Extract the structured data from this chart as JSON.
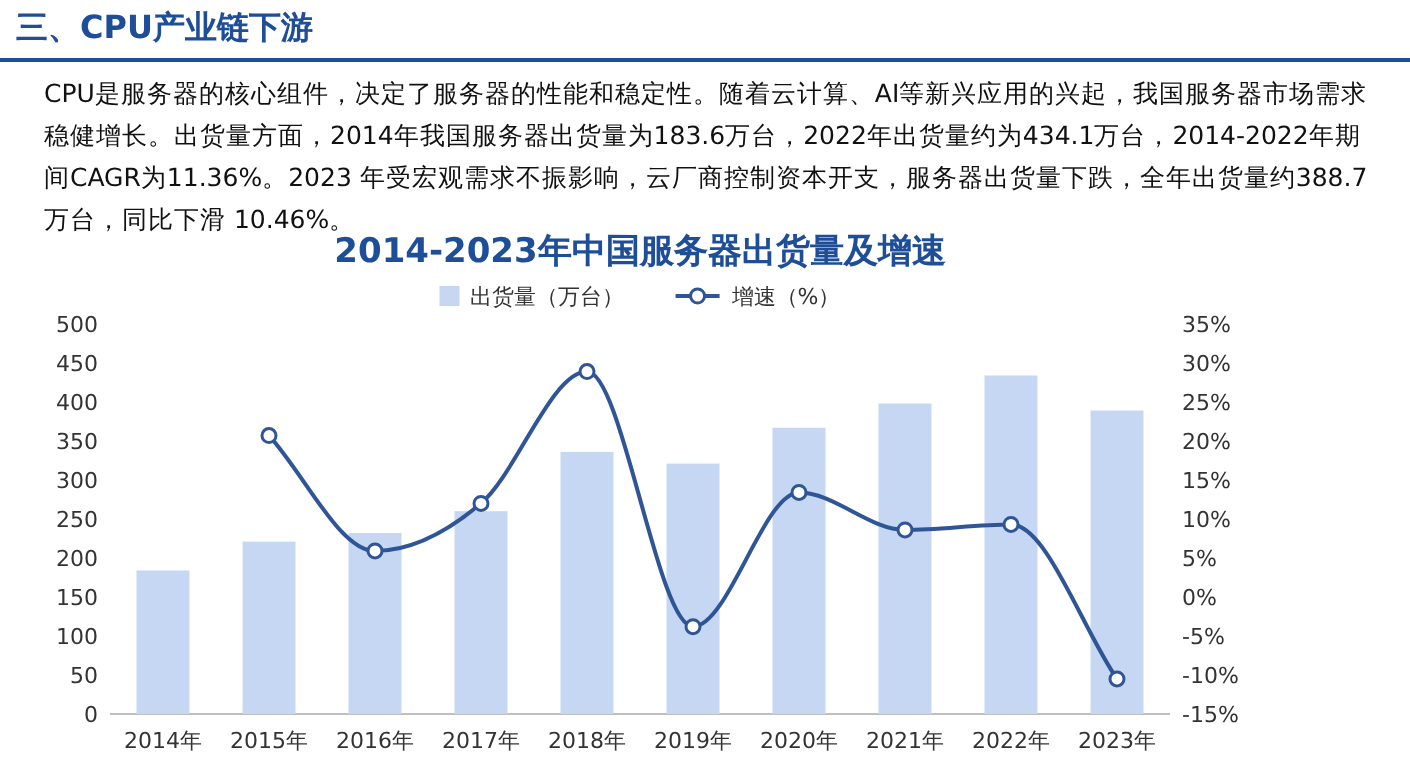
{
  "chart_data": {
    "type": "bar",
    "title": "2014-2023年中国服务器出货量及增速",
    "subtitle": "CPU是服务器的核心组件，决定了服务器的性能和稳定性。随着云计算、AI等新兴应用的兴起，我国服务器市场需求稳健增长。出货量方面，2014年我国服务器出货量为183.6万台，2022年出货量约为434.1万台，2014-2022年期间CAGR为11.36%。2023 年受宏观需求不振影响，云厂商控制资本开支，服务器出货量下跌，全年出货量约388.7万台，同比下滑 10.46%。",
    "annotations": [
      "三、CPU产业链下游"
    ],
    "categories": [
      "2014年",
      "2015年",
      "2016年",
      "2017年",
      "2018年",
      "2019年",
      "2020年",
      "2021年",
      "2022年",
      "2023年"
    ],
    "series": [
      {
        "name": "出货量（万台）",
        "color": "#c5d7f2",
        "values": [
          184,
          221,
          232,
          260,
          336,
          321,
          367,
          398,
          434,
          389
        ]
      },
      {
        "name": "增速（%）",
        "type": "line",
        "axis": "y2",
        "color": "#2f5597",
        "marker": "circle",
        "values": [
          null,
          20.7,
          5.9,
          12,
          28.9,
          -3.8,
          13.4,
          8.6,
          9.3,
          -10.5
        ]
      }
    ],
    "ylim": [
      0,
      500
    ],
    "yticks": [
      0,
      50,
      100,
      150,
      200,
      250,
      300,
      350,
      400,
      450,
      500
    ],
    "y2lim": [
      -15,
      35
    ],
    "y2ticks": [
      {
        "value": -15,
        "label": "-15%"
      },
      {
        "value": -10,
        "label": "-10%"
      },
      {
        "value": -5,
        "label": "-5%"
      },
      {
        "value": 0,
        "label": "0%"
      },
      {
        "value": 5,
        "label": "5%"
      },
      {
        "value": 10,
        "label": "10%"
      },
      {
        "value": 15,
        "label": "15%"
      },
      {
        "value": 20,
        "label": "20%"
      },
      {
        "value": 25,
        "label": "25%"
      },
      {
        "value": 30,
        "label": "30%"
      },
      {
        "value": 35,
        "label": "35%"
      }
    ],
    "legend": "top"
  }
}
